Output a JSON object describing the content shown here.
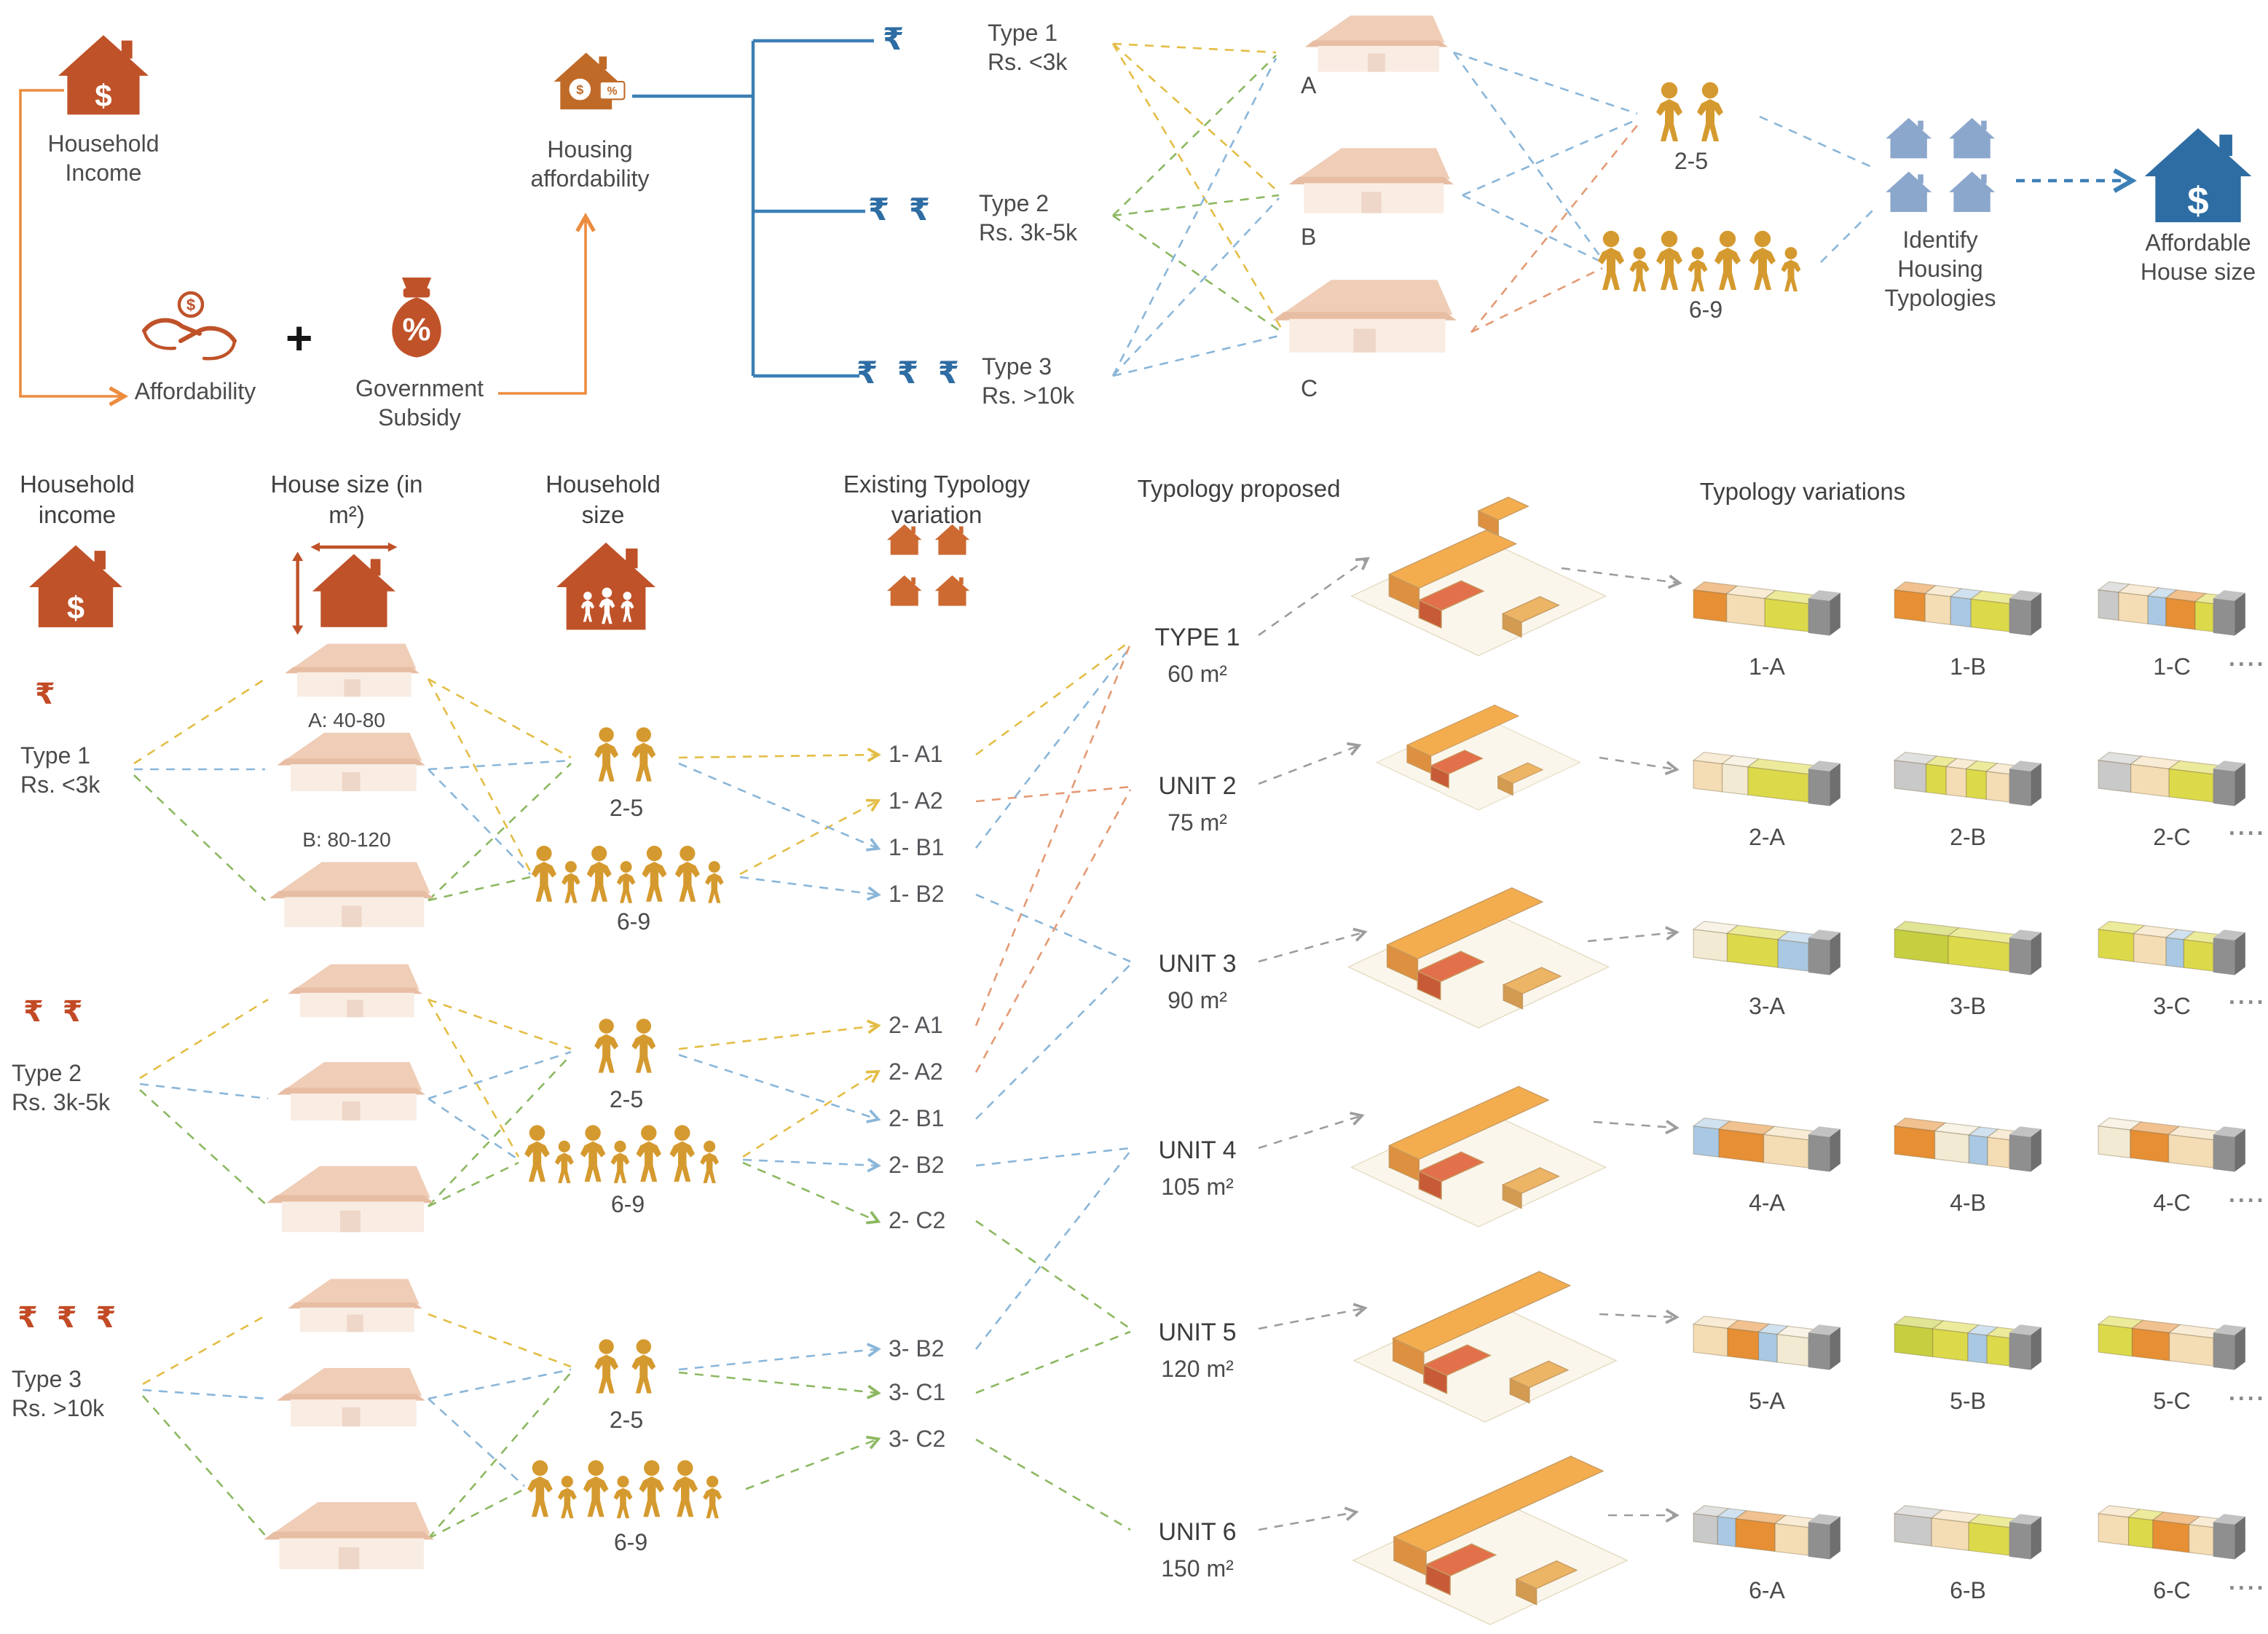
{
  "palette": {
    "orange_primary": "#bf5229",
    "gold_people": "#d59a2f",
    "blue_primary": "#2e6da3",
    "light_blue_house": "#8ca7cc",
    "faded_house": "#efcdb6",
    "dash_yellow": "#e3bd45",
    "dash_green": "#8cb861",
    "dash_blue": "#8ab6d9",
    "dash_orange": "#e49a74",
    "dash_grey": "#9d9d9d"
  },
  "top": {
    "household_income": {
      "label": "Household Income"
    },
    "affordability": {
      "label": "Affordability"
    },
    "plus": "+",
    "government_subsidy": {
      "label": "Government Subsidy"
    },
    "housing_affordability": {
      "label": "Housing affordability"
    },
    "price_types": [
      {
        "symbol": "₹",
        "name": "Type 1",
        "range": "Rs. <3k"
      },
      {
        "symbol": "₹ ₹",
        "name": "Type 2",
        "range": "Rs. 3k-5k"
      },
      {
        "symbol": "₹ ₹ ₹",
        "name": "Type 3",
        "range": "Rs. >10k"
      }
    ],
    "house_options": [
      {
        "label": "A"
      },
      {
        "label": "B"
      },
      {
        "label": "C"
      }
    ],
    "household_sizes": [
      {
        "label": "2-5"
      },
      {
        "label": "6-9"
      }
    ],
    "identify": {
      "label": "Identify Housing Typologies"
    },
    "affordable": {
      "label": "Affordable House size"
    }
  },
  "matrix": {
    "headers": {
      "income": "Household income",
      "house_size": "House size (in m²)",
      "household_size": "Household size",
      "existing": "Existing Typology variation",
      "proposed": "Typology proposed",
      "variations": "Typology variations"
    },
    "size_labels": {
      "a": "A: 40-80",
      "b": "B: 80-120"
    },
    "types": [
      {
        "symbol": "₹",
        "name": "Type 1",
        "range": "Rs. <3k",
        "sizes": [
          "2-5",
          "6-9"
        ],
        "existing": [
          "1- A1",
          "1- A2",
          "1- B1",
          "1- B2"
        ]
      },
      {
        "symbol": "₹ ₹",
        "name": "Type 2",
        "range": "Rs. 3k-5k",
        "sizes": [
          "2-5",
          "6-9"
        ],
        "existing": [
          "2- A1",
          "2- A2",
          "2- B1",
          "2- B2",
          "2- C2"
        ]
      },
      {
        "symbol": "₹ ₹ ₹",
        "name": "Type 3",
        "range": "Rs. >10k",
        "sizes": [
          "2-5",
          "6-9"
        ],
        "existing": [
          "3- B2",
          "3- C1",
          "3- C2"
        ]
      }
    ],
    "proposed_units": [
      {
        "name": "TYPE 1",
        "area": "60 m²"
      },
      {
        "name": "UNIT 2",
        "area": "75 m²"
      },
      {
        "name": "UNIT 3",
        "area": "90 m²"
      },
      {
        "name": "UNIT 4",
        "area": "105 m²"
      },
      {
        "name": "UNIT 5",
        "area": "120 m²"
      },
      {
        "name": "UNIT 6",
        "area": "150 m²"
      }
    ],
    "variations": [
      {
        "labels": [
          "1-A",
          "1-B",
          "1-C"
        ],
        "more": "...."
      },
      {
        "labels": [
          "2-A",
          "2-B",
          "2-C"
        ],
        "more": "...."
      },
      {
        "labels": [
          "3-A",
          "3-B",
          "3-C"
        ],
        "more": "...."
      },
      {
        "labels": [
          "4-A",
          "4-B",
          "4-C"
        ],
        "more": "...."
      },
      {
        "labels": [
          "5-A",
          "5-B",
          "5-C"
        ],
        "more": "...."
      },
      {
        "labels": [
          "6-A",
          "6-B",
          "6-C"
        ],
        "more": "...."
      }
    ]
  }
}
